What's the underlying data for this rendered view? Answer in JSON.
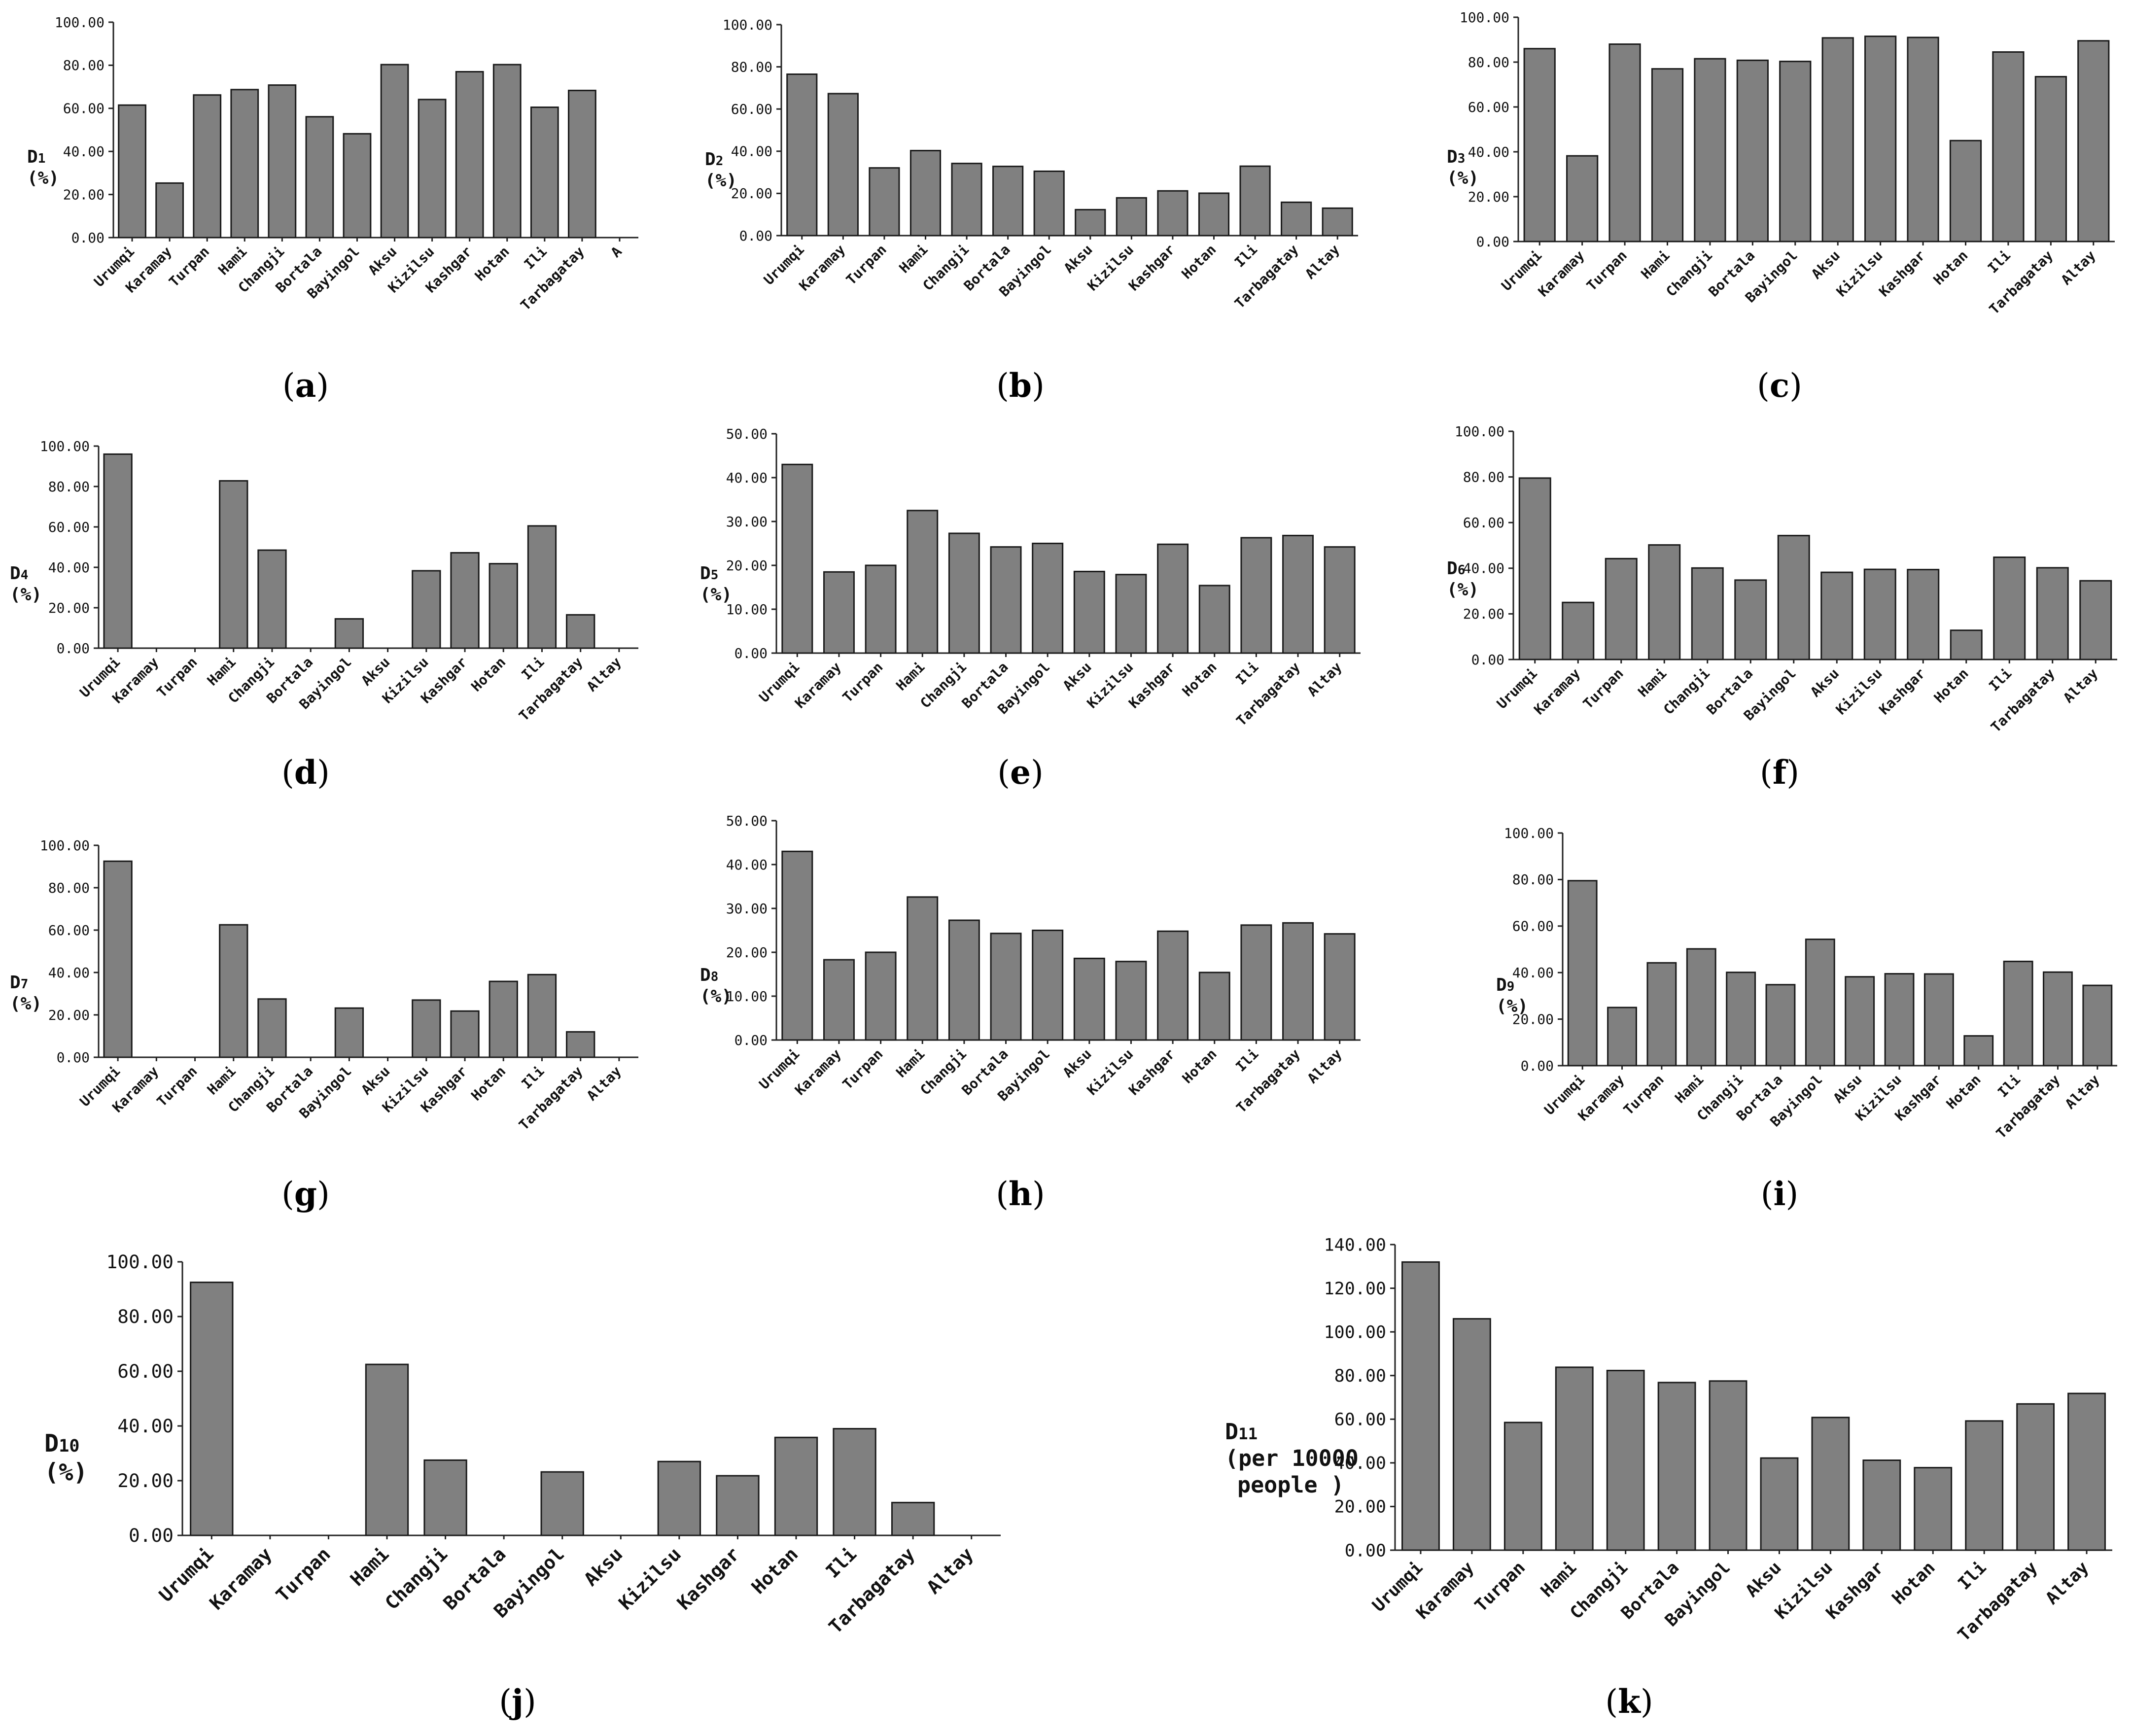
{
  "chart_data": [
    {
      "type": "bar",
      "panel_label": "a",
      "ylabel_main": "D",
      "ylabel_sub": "1",
      "ylabel_unit": "(%)",
      "ylim": [
        0,
        100
      ],
      "yticks": [
        "0.00",
        "20.00",
        "40.00",
        "60.00",
        "80.00",
        "100.00"
      ],
      "categories": [
        "Urumqi",
        "Karamay",
        "Turpan",
        "Hami",
        "Changji",
        "Bortala",
        "Bayingol",
        "Aksu",
        "Kizilsu",
        "Kashgar",
        "Hotan",
        "Ili",
        "Tarbagatay",
        "A"
      ],
      "values": [
        61.5,
        25.3,
        66.2,
        68.7,
        70.8,
        56.1,
        48.2,
        80.3,
        64.1,
        77.0,
        80.3,
        60.5,
        68.3,
        null
      ],
      "grid": false
    },
    {
      "type": "bar",
      "panel_label": "b",
      "ylabel_main": "D",
      "ylabel_sub": "2",
      "ylabel_unit": "(%)",
      "ylim": [
        0,
        100
      ],
      "yticks": [
        "0.00",
        "20.00",
        "40.00",
        "60.00",
        "80.00",
        "100.00"
      ],
      "categories": [
        "Urumqi",
        "Karamay",
        "Turpan",
        "Hami",
        "Changji",
        "Bortala",
        "Bayingol",
        "Aksu",
        "Kizilsu",
        "Kashgar",
        "Hotan",
        "Ili",
        "Tarbagatay",
        "Altay"
      ],
      "values": [
        76.5,
        67.3,
        32.1,
        40.3,
        34.2,
        32.8,
        30.5,
        12.3,
        17.9,
        21.2,
        20.1,
        32.9,
        15.8,
        13.0
      ],
      "grid": false
    },
    {
      "type": "bar",
      "panel_label": "c",
      "ylabel_main": "D",
      "ylabel_sub": "3",
      "ylabel_unit": "(%)",
      "ylim": [
        0,
        100
      ],
      "yticks": [
        "0.00",
        "20.00",
        "40.00",
        "60.00",
        "80.00",
        "100.00"
      ],
      "categories": [
        "Urumqi",
        "Karamay",
        "Turpan",
        "Hami",
        "Changji",
        "Bortala",
        "Bayingol",
        "Aksu",
        "Kizilsu",
        "Kashgar",
        "Hotan",
        "Ili",
        "Tarbagatay",
        "Altay"
      ],
      "values": [
        86.0,
        38.2,
        88.0,
        77.0,
        81.5,
        80.8,
        80.3,
        90.8,
        91.5,
        91.0,
        45.0,
        84.5,
        73.5,
        89.5
      ],
      "grid": false
    },
    {
      "type": "bar",
      "panel_label": "d",
      "ylabel_main": "D",
      "ylabel_sub": "4",
      "ylabel_unit": "(%)",
      "ylim": [
        0,
        100
      ],
      "yticks": [
        "0.00",
        "20.00",
        "40.00",
        "60.00",
        "80.00",
        "100.00"
      ],
      "categories": [
        "Urumqi",
        "Karamay",
        "Turpan",
        "Hami",
        "Changji",
        "Bortala",
        "Bayingol",
        "Aksu",
        "Kizilsu",
        "Kashgar",
        "Hotan",
        "Ili",
        "Tarbagatay",
        "Altay"
      ],
      "values": [
        96.0,
        0,
        0,
        82.8,
        48.5,
        0,
        14.5,
        0,
        38.3,
        47.2,
        41.8,
        60.5,
        16.5,
        0
      ],
      "grid": false
    },
    {
      "type": "bar",
      "panel_label": "e",
      "ylabel_main": "D",
      "ylabel_sub": "5",
      "ylabel_unit": "(%)",
      "ylim": [
        0,
        50
      ],
      "yticks": [
        "0.00",
        "10.00",
        "20.00",
        "30.00",
        "40.00",
        "50.00"
      ],
      "categories": [
        "Urumqi",
        "Karamay",
        "Turpan",
        "Hami",
        "Changji",
        "Bortala",
        "Bayingol",
        "Aksu",
        "Kizilsu",
        "Kashgar",
        "Hotan",
        "Ili",
        "Tarbagatay",
        "Altay"
      ],
      "values": [
        43.0,
        18.5,
        20.0,
        32.5,
        27.3,
        24.2,
        25.0,
        18.6,
        17.9,
        24.8,
        15.4,
        26.3,
        26.8,
        24.2
      ],
      "grid": false
    },
    {
      "type": "bar",
      "panel_label": "f",
      "ylabel_main": "D",
      "ylabel_sub": "6",
      "ylabel_unit": "(%)",
      "ylim": [
        0,
        100
      ],
      "yticks": [
        "0.00",
        "20.00",
        "40.00",
        "60.00",
        "80.00",
        "100.00"
      ],
      "categories": [
        "Urumqi",
        "Karamay",
        "Turpan",
        "Hami",
        "Changji",
        "Bortala",
        "Bayingol",
        "Aksu",
        "Kizilsu",
        "Kashgar",
        "Hotan",
        "Ili",
        "Tarbagatay",
        "Altay"
      ],
      "values": [
        79.5,
        25.0,
        44.2,
        50.2,
        40.1,
        34.8,
        54.3,
        38.2,
        39.5,
        39.4,
        12.8,
        44.8,
        40.2,
        34.5
      ],
      "grid": false
    },
    {
      "type": "bar",
      "panel_label": "g",
      "ylabel_main": "D",
      "ylabel_sub": "7",
      "ylabel_unit": "(%)",
      "ylim": [
        0,
        100
      ],
      "yticks": [
        "0.00",
        "20.00",
        "40.00",
        "60.00",
        "80.00",
        "100.00"
      ],
      "categories": [
        "Urumqi",
        "Karamay",
        "Turpan",
        "Hami",
        "Changji",
        "Bortala",
        "Bayingol",
        "Aksu",
        "Kizilsu",
        "Kashgar",
        "Hotan",
        "Ili",
        "Tarbagatay",
        "Altay"
      ],
      "values": [
        92.5,
        0,
        0,
        62.5,
        27.5,
        0,
        23.2,
        0,
        27.0,
        21.8,
        35.8,
        39.0,
        12.0,
        0
      ],
      "grid": false
    },
    {
      "type": "bar",
      "panel_label": "h",
      "ylabel_main": "D",
      "ylabel_sub": "8",
      "ylabel_unit": "(%)",
      "ylim": [
        0,
        50
      ],
      "yticks": [
        "0.00",
        "10.00",
        "20.00",
        "30.00",
        "40.00",
        "50.00"
      ],
      "categories": [
        "Urumqi",
        "Karamay",
        "Turpan",
        "Hami",
        "Changji",
        "Bortala",
        "Bayingol",
        "Aksu",
        "Kizilsu",
        "Kashgar",
        "Hotan",
        "Ili",
        "Tarbagatay",
        "Altay"
      ],
      "values": [
        43.0,
        18.3,
        20.0,
        32.6,
        27.3,
        24.3,
        25.0,
        18.6,
        17.9,
        24.8,
        15.4,
        26.2,
        26.7,
        24.2
      ],
      "grid": false
    },
    {
      "type": "bar",
      "panel_label": "i",
      "ylabel_main": "D",
      "ylabel_sub": "9",
      "ylabel_unit": "(%)",
      "ylim": [
        0,
        100
      ],
      "yticks": [
        "0.00",
        "20.00",
        "40.00",
        "60.00",
        "80.00",
        "100.00"
      ],
      "categories": [
        "Urumqi",
        "Karamay",
        "Turpan",
        "Hami",
        "Changji",
        "Bortala",
        "Bayingol",
        "Aksu",
        "Kizilsu",
        "Kashgar",
        "Hotan",
        "Ili",
        "Tarbagatay",
        "Altay"
      ],
      "values": [
        79.5,
        25.0,
        44.2,
        50.2,
        40.1,
        34.8,
        54.3,
        38.2,
        39.5,
        39.4,
        12.8,
        44.8,
        40.2,
        34.5
      ],
      "grid": false
    },
    {
      "type": "bar",
      "panel_label": "j",
      "ylabel_main": "D",
      "ylabel_sub": "10",
      "ylabel_unit": "(%)",
      "ylim": [
        0,
        100
      ],
      "yticks": [
        "0.00",
        "20.00",
        "40.00",
        "60.00",
        "80.00",
        "100.00"
      ],
      "categories": [
        "Urumqi",
        "Karamay",
        "Turpan",
        "Hami",
        "Changji",
        "Bortala",
        "Bayingol",
        "Aksu",
        "Kizilsu",
        "Kashgar",
        "Hotan",
        "Ili",
        "Tarbagatay",
        "Altay"
      ],
      "values": [
        92.5,
        0,
        0,
        62.5,
        27.5,
        0,
        23.2,
        0,
        27.0,
        21.8,
        35.8,
        39.0,
        12.0,
        0
      ],
      "grid": false
    },
    {
      "type": "bar",
      "panel_label": "k",
      "ylabel_main": "D",
      "ylabel_sub": "11",
      "ylabel_unit": "(per 10000",
      "ylabel_unit2": "people )",
      "ylim": [
        0,
        140
      ],
      "yticks": [
        "0.00",
        "20.00",
        "40.00",
        "60.00",
        "80.00",
        "100.00",
        "120.00",
        "140.00"
      ],
      "categories": [
        "Urumqi",
        "Karamay",
        "Turpan",
        "Hami",
        "Changji",
        "Bortala",
        "Bayingol",
        "Aksu",
        "Kizilsu",
        "Kashgar",
        "Hotan",
        "Ili",
        "Tarbagatay",
        "Altay"
      ],
      "values": [
        132.0,
        106.0,
        58.5,
        83.8,
        82.3,
        76.8,
        77.5,
        42.2,
        60.8,
        41.2,
        37.8,
        59.2,
        67.0,
        71.8
      ],
      "grid": false
    }
  ]
}
